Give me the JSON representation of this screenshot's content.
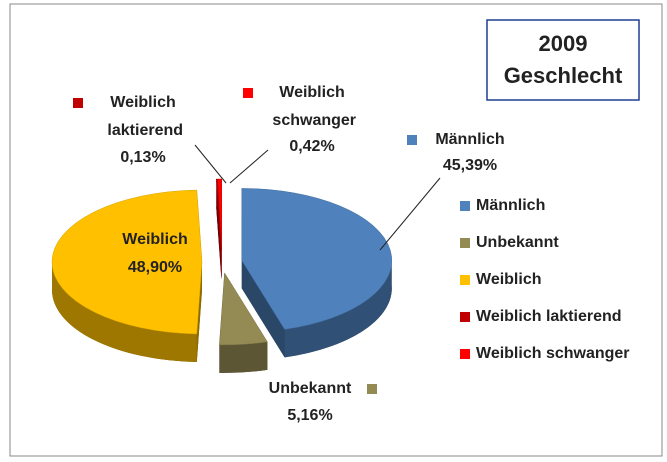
{
  "chart_data": {
    "type": "pie",
    "title": [
      "2009",
      "Geschlecht"
    ],
    "categories": [
      "Männlich",
      "Unbekannt",
      "Weiblich",
      "Weiblich laktierend",
      "Weiblich schwanger"
    ],
    "values": [
      45.39,
      5.16,
      48.9,
      0.13,
      0.42
    ],
    "value_labels": [
      "45,39%",
      "5,16%",
      "48,90%",
      "0,13%",
      "0,42%"
    ],
    "colors": [
      "#4f81bd",
      "#948a54",
      "#ffc000",
      "#c00000",
      "#ff0000"
    ],
    "legend": "right"
  }
}
